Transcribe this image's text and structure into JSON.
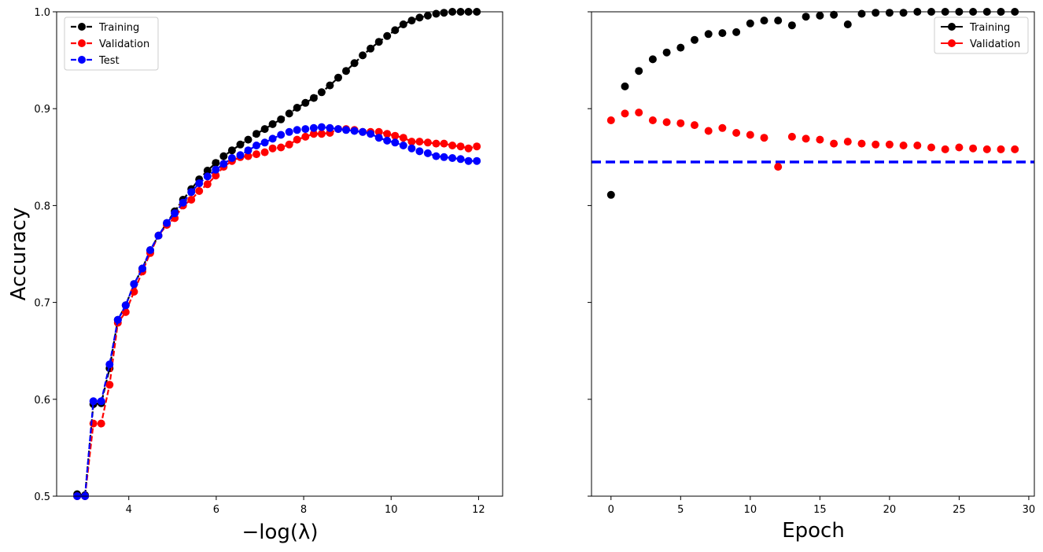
{
  "chart_data": [
    {
      "type": "line",
      "xlabel": "−log(λ)",
      "ylabel": "Accuracy",
      "xlim": [
        2.35,
        12.55
      ],
      "ylim": [
        0.5,
        1.0
      ],
      "xticks": [
        4,
        6,
        8,
        10,
        12
      ],
      "yticks": [
        0.5,
        0.6,
        0.7,
        0.8,
        0.9,
        1.0
      ],
      "yticklabels": [
        "0.5",
        "0.6",
        "0.7",
        "0.8",
        "0.9",
        "1.0"
      ],
      "legend_position": "top-left",
      "x": [
        2.82,
        3.0,
        3.19,
        3.37,
        3.56,
        3.75,
        3.93,
        4.12,
        4.31,
        4.49,
        4.68,
        4.87,
        5.05,
        5.24,
        5.43,
        5.61,
        5.8,
        5.99,
        6.17,
        6.36,
        6.55,
        6.73,
        6.92,
        7.11,
        7.29,
        7.48,
        7.67,
        7.85,
        8.04,
        8.23,
        8.41,
        8.6,
        8.79,
        8.97,
        9.16,
        9.35,
        9.53,
        9.72,
        9.91,
        10.09,
        10.28,
        10.47,
        10.65,
        10.84,
        11.03,
        11.21,
        11.4,
        11.59,
        11.77,
        11.96
      ],
      "series": [
        {
          "name": "Training",
          "color": "#000000",
          "values": [
            0.502,
            0.501,
            0.595,
            0.596,
            0.632,
            0.682,
            0.697,
            0.719,
            0.735,
            0.754,
            0.769,
            0.782,
            0.794,
            0.806,
            0.817,
            0.827,
            0.836,
            0.844,
            0.851,
            0.857,
            0.863,
            0.868,
            0.874,
            0.879,
            0.884,
            0.889,
            0.895,
            0.901,
            0.906,
            0.911,
            0.917,
            0.924,
            0.932,
            0.939,
            0.947,
            0.955,
            0.962,
            0.969,
            0.975,
            0.981,
            0.987,
            0.991,
            0.994,
            0.996,
            0.998,
            0.999,
            1.0,
            1.0,
            1.0,
            1.0
          ]
        },
        {
          "name": "Validation",
          "color": "#ff0000",
          "values": [
            0.5,
            0.5,
            0.575,
            0.575,
            0.615,
            0.679,
            0.69,
            0.711,
            0.732,
            0.751,
            0.769,
            0.78,
            0.787,
            0.8,
            0.806,
            0.815,
            0.822,
            0.831,
            0.84,
            0.846,
            0.85,
            0.851,
            0.853,
            0.855,
            0.859,
            0.86,
            0.863,
            0.868,
            0.871,
            0.874,
            0.874,
            0.875,
            0.879,
            0.879,
            0.878,
            0.876,
            0.876,
            0.876,
            0.874,
            0.872,
            0.87,
            0.866,
            0.866,
            0.865,
            0.864,
            0.864,
            0.862,
            0.861,
            0.859,
            0.861
          ]
        },
        {
          "name": "Test",
          "color": "#0000ff",
          "values": [
            0.5,
            0.5,
            0.598,
            0.598,
            0.636,
            0.682,
            0.697,
            0.719,
            0.735,
            0.754,
            0.769,
            0.782,
            0.792,
            0.803,
            0.814,
            0.823,
            0.83,
            0.837,
            0.843,
            0.849,
            0.852,
            0.857,
            0.862,
            0.865,
            0.869,
            0.873,
            0.876,
            0.878,
            0.879,
            0.88,
            0.881,
            0.88,
            0.879,
            0.878,
            0.877,
            0.876,
            0.874,
            0.87,
            0.867,
            0.865,
            0.862,
            0.859,
            0.856,
            0.854,
            0.851,
            0.85,
            0.849,
            0.848,
            0.846,
            0.846
          ]
        }
      ]
    },
    {
      "type": "scatter",
      "xlabel": "Epoch",
      "ylabel": "",
      "xlim": [
        -1.4,
        30.4
      ],
      "ylim": [
        0.5,
        1.0
      ],
      "xticks": [
        0,
        5,
        10,
        15,
        20,
        25,
        30
      ],
      "yticks": [
        0.5,
        0.6,
        0.7,
        0.8,
        0.9,
        1.0
      ],
      "legend_position": "top-right",
      "x": [
        0,
        1,
        2,
        3,
        4,
        5,
        6,
        7,
        8,
        9,
        10,
        11,
        12,
        13,
        14,
        15,
        16,
        17,
        18,
        19,
        20,
        21,
        22,
        23,
        24,
        25,
        26,
        27,
        28,
        29
      ],
      "series": [
        {
          "name": "Training",
          "color": "#000000",
          "values": [
            0.811,
            0.923,
            0.939,
            0.951,
            0.958,
            0.963,
            0.971,
            0.977,
            0.978,
            0.979,
            0.988,
            0.991,
            0.991,
            0.986,
            0.995,
            0.996,
            0.997,
            0.987,
            0.998,
            0.999,
            0.999,
            0.999,
            1.0,
            1.0,
            1.0,
            1.0,
            1.0,
            1.0,
            1.0,
            1.0
          ]
        },
        {
          "name": "Validation",
          "color": "#ff0000",
          "values": [
            0.888,
            0.895,
            0.896,
            0.888,
            0.886,
            0.885,
            0.883,
            0.877,
            0.88,
            0.875,
            0.873,
            0.87,
            0.84,
            0.871,
            0.869,
            0.868,
            0.864,
            0.866,
            0.864,
            0.863,
            0.863,
            0.862,
            0.862,
            0.86,
            0.858,
            0.86,
            0.859,
            0.858,
            0.858,
            0.858
          ]
        }
      ],
      "hline": {
        "y": 0.845,
        "color": "#0000ff",
        "style": "dashed"
      }
    }
  ]
}
